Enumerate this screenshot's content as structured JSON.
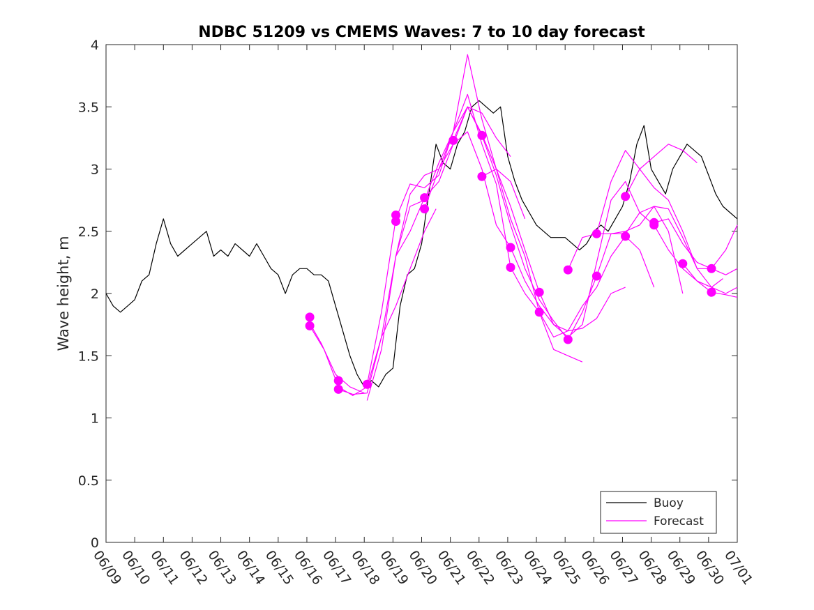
{
  "chart_data": {
    "type": "line",
    "title": "NDBC 51209 vs CMEMS Waves: 7 to 10 day forecast",
    "xlabel": "",
    "ylabel": "Wave height, m",
    "xlim": [
      "06/09",
      "07/01"
    ],
    "ylim": [
      0,
      4
    ],
    "x_ticks": [
      "06/09",
      "06/10",
      "06/11",
      "06/12",
      "06/13",
      "06/14",
      "06/15",
      "06/16",
      "06/17",
      "06/18",
      "06/19",
      "06/20",
      "06/21",
      "06/22",
      "06/23",
      "06/24",
      "06/25",
      "06/26",
      "06/27",
      "06/28",
      "06/29",
      "06/30",
      "07/01"
    ],
    "y_ticks": [
      "0",
      "0.5",
      "1",
      "1.5",
      "2",
      "2.5",
      "3",
      "3.5",
      "4"
    ],
    "grid": false,
    "legend": {
      "placement": "bottom-right",
      "entries": [
        "Buoy",
        "Forecast"
      ]
    },
    "colors": {
      "buoy": "#000000",
      "forecast": "#ff00ff"
    },
    "series": [
      {
        "name": "Buoy",
        "points": [
          [
            0.0,
            2.0
          ],
          [
            0.25,
            1.9
          ],
          [
            0.5,
            1.85
          ],
          [
            0.75,
            1.9
          ],
          [
            1.0,
            1.95
          ],
          [
            1.25,
            2.1
          ],
          [
            1.5,
            2.15
          ],
          [
            1.75,
            2.4
          ],
          [
            2.0,
            2.6
          ],
          [
            2.25,
            2.4
          ],
          [
            2.5,
            2.3
          ],
          [
            2.75,
            2.35
          ],
          [
            3.0,
            2.4
          ],
          [
            3.25,
            2.45
          ],
          [
            3.5,
            2.5
          ],
          [
            3.75,
            2.3
          ],
          [
            4.0,
            2.35
          ],
          [
            4.25,
            2.3
          ],
          [
            4.5,
            2.4
          ],
          [
            4.75,
            2.35
          ],
          [
            5.0,
            2.3
          ],
          [
            5.25,
            2.4
          ],
          [
            5.5,
            2.3
          ],
          [
            5.75,
            2.2
          ],
          [
            6.0,
            2.15
          ],
          [
            6.25,
            2.0
          ],
          [
            6.5,
            2.15
          ],
          [
            6.75,
            2.2
          ],
          [
            7.0,
            2.2
          ],
          [
            7.25,
            2.15
          ],
          [
            7.5,
            2.15
          ],
          [
            7.75,
            2.1
          ],
          [
            8.0,
            1.9
          ],
          [
            8.25,
            1.7
          ],
          [
            8.5,
            1.5
          ],
          [
            8.75,
            1.35
          ],
          [
            9.0,
            1.25
          ],
          [
            9.25,
            1.3
          ],
          [
            9.5,
            1.25
          ],
          [
            9.75,
            1.35
          ],
          [
            10.0,
            1.4
          ],
          [
            10.25,
            1.9
          ],
          [
            10.5,
            2.15
          ],
          [
            10.75,
            2.2
          ],
          [
            11.0,
            2.4
          ],
          [
            11.25,
            2.8
          ],
          [
            11.5,
            3.2
          ],
          [
            11.75,
            3.05
          ],
          [
            12.0,
            3.0
          ],
          [
            12.25,
            3.2
          ],
          [
            12.5,
            3.3
          ],
          [
            12.75,
            3.5
          ],
          [
            13.0,
            3.55
          ],
          [
            13.25,
            3.5
          ],
          [
            13.5,
            3.45
          ],
          [
            13.75,
            3.5
          ],
          [
            14.0,
            3.1
          ],
          [
            14.25,
            2.9
          ],
          [
            14.5,
            2.75
          ],
          [
            14.75,
            2.65
          ],
          [
            15.0,
            2.55
          ],
          [
            15.25,
            2.5
          ],
          [
            15.5,
            2.45
          ],
          [
            15.75,
            2.45
          ],
          [
            16.0,
            2.45
          ],
          [
            16.25,
            2.4
          ],
          [
            16.5,
            2.35
          ],
          [
            16.75,
            2.4
          ],
          [
            17.0,
            2.5
          ],
          [
            17.25,
            2.55
          ],
          [
            17.5,
            2.5
          ],
          [
            17.75,
            2.6
          ],
          [
            18.0,
            2.7
          ],
          [
            18.25,
            2.9
          ],
          [
            18.5,
            3.2
          ],
          [
            18.75,
            3.35
          ],
          [
            19.0,
            3.0
          ],
          [
            19.25,
            2.9
          ],
          [
            19.5,
            2.8
          ],
          [
            19.75,
            3.0
          ],
          [
            20.0,
            3.1
          ],
          [
            20.25,
            3.2
          ],
          [
            20.5,
            3.15
          ],
          [
            20.75,
            3.1
          ],
          [
            21.0,
            2.95
          ],
          [
            21.25,
            2.8
          ],
          [
            21.5,
            2.7
          ],
          [
            21.75,
            2.65
          ],
          [
            22.0,
            2.6
          ]
        ]
      },
      {
        "name": "Forecast",
        "points": [
          [
            7.0,
            1.8
          ],
          [
            7.5,
            1.6
          ],
          [
            8.0,
            1.35
          ],
          [
            8.5,
            1.25
          ],
          [
            9.0,
            1.2
          ]
        ],
        "markers": [
          [
            7.1,
            1.81
          ],
          [
            7.1,
            1.74
          ],
          [
            8.1,
            1.3
          ],
          [
            8.1,
            1.23
          ],
          [
            9.1,
            1.27
          ],
          [
            10.1,
            2.63
          ],
          [
            10.1,
            2.58
          ],
          [
            11.1,
            2.77
          ],
          [
            11.1,
            2.68
          ],
          [
            12.1,
            3.23
          ],
          [
            13.1,
            3.27
          ],
          [
            13.1,
            2.94
          ],
          [
            14.1,
            2.37
          ],
          [
            14.1,
            2.21
          ],
          [
            15.1,
            2.01
          ],
          [
            15.1,
            1.85
          ],
          [
            16.1,
            1.63
          ],
          [
            16.1,
            2.19
          ],
          [
            17.1,
            2.48
          ],
          [
            17.1,
            2.14
          ],
          [
            18.1,
            2.78
          ],
          [
            18.1,
            2.46
          ],
          [
            19.1,
            2.57
          ],
          [
            19.1,
            2.55
          ],
          [
            20.1,
            2.24
          ],
          [
            21.1,
            2.2
          ],
          [
            21.1,
            2.01
          ]
        ]
      },
      {
        "name": "",
        "points": [
          [
            7.1,
            1.74
          ],
          [
            7.6,
            1.55
          ],
          [
            8.1,
            1.25
          ],
          [
            8.6,
            1.18
          ],
          [
            9.1,
            1.25
          ],
          [
            9.6,
            1.65
          ],
          [
            10.1,
            1.9
          ],
          [
            10.6,
            2.2
          ],
          [
            11.1,
            2.5
          ],
          [
            11.5,
            2.68
          ]
        ]
      },
      {
        "name": "",
        "points": [
          [
            8.1,
            1.23
          ],
          [
            8.6,
            1.19
          ],
          [
            9.1,
            1.2
          ],
          [
            9.6,
            1.65
          ],
          [
            10.1,
            2.3
          ],
          [
            10.6,
            2.8
          ],
          [
            11.1,
            2.95
          ],
          [
            11.6,
            3.0
          ],
          [
            12.1,
            3.2
          ],
          [
            12.6,
            3.5
          ],
          [
            13.1,
            3.45
          ],
          [
            13.6,
            3.25
          ],
          [
            14.1,
            3.1
          ]
        ]
      },
      {
        "name": "",
        "points": [
          [
            9.1,
            1.27
          ],
          [
            9.6,
            1.85
          ],
          [
            10.1,
            2.6
          ],
          [
            10.6,
            2.88
          ],
          [
            11.1,
            2.85
          ],
          [
            11.6,
            2.95
          ],
          [
            12.1,
            3.3
          ],
          [
            12.6,
            3.92
          ],
          [
            13.1,
            3.4
          ],
          [
            13.6,
            3.0
          ],
          [
            14.1,
            2.9
          ],
          [
            14.6,
            2.6
          ]
        ]
      },
      {
        "name": "",
        "points": [
          [
            9.1,
            1.14
          ],
          [
            9.6,
            1.55
          ],
          [
            10.1,
            2.3
          ],
          [
            10.6,
            2.7
          ],
          [
            11.1,
            2.75
          ],
          [
            11.6,
            3.05
          ],
          [
            12.1,
            3.3
          ],
          [
            12.6,
            3.5
          ],
          [
            13.1,
            3.28
          ],
          [
            13.6,
            3.0
          ],
          [
            14.1,
            2.6
          ],
          [
            14.6,
            2.3
          ],
          [
            15.1,
            1.85
          ],
          [
            15.6,
            1.55
          ],
          [
            16.1,
            1.5
          ],
          [
            16.6,
            1.45
          ]
        ]
      },
      {
        "name": "",
        "points": [
          [
            10.1,
            2.3
          ],
          [
            10.6,
            2.5
          ],
          [
            11.1,
            2.77
          ],
          [
            11.6,
            2.9
          ],
          [
            12.1,
            3.2
          ],
          [
            12.6,
            3.3
          ],
          [
            13.1,
            3.0
          ],
          [
            13.6,
            2.55
          ],
          [
            14.1,
            2.37
          ],
          [
            14.6,
            2.1
          ],
          [
            15.1,
            1.9
          ],
          [
            15.6,
            1.75
          ],
          [
            16.1,
            1.7
          ],
          [
            16.6,
            1.72
          ],
          [
            17.1,
            1.8
          ],
          [
            17.6,
            2.0
          ],
          [
            18.1,
            2.05
          ]
        ]
      },
      {
        "name": "",
        "points": [
          [
            11.1,
            2.68
          ],
          [
            11.6,
            3.0
          ],
          [
            12.1,
            3.3
          ],
          [
            12.6,
            3.6
          ],
          [
            13.1,
            3.2
          ],
          [
            13.6,
            2.88
          ],
          [
            14.1,
            2.21
          ],
          [
            14.6,
            2.0
          ],
          [
            15.1,
            1.85
          ],
          [
            15.6,
            1.65
          ],
          [
            16.1,
            1.7
          ],
          [
            16.6,
            1.9
          ],
          [
            17.1,
            2.05
          ],
          [
            17.6,
            2.3
          ],
          [
            18.1,
            2.46
          ],
          [
            18.6,
            2.35
          ],
          [
            19.1,
            2.05
          ]
        ]
      },
      {
        "name": "",
        "points": [
          [
            12.1,
            3.23
          ],
          [
            12.6,
            3.5
          ],
          [
            13.1,
            3.27
          ],
          [
            13.6,
            2.95
          ],
          [
            14.1,
            2.55
          ],
          [
            14.6,
            2.2
          ],
          [
            15.1,
            1.95
          ],
          [
            15.6,
            1.78
          ],
          [
            16.1,
            1.63
          ],
          [
            16.6,
            1.85
          ],
          [
            17.1,
            2.14
          ],
          [
            17.6,
            2.48
          ],
          [
            18.1,
            2.5
          ],
          [
            18.6,
            2.55
          ],
          [
            19.1,
            2.7
          ],
          [
            19.6,
            2.5
          ],
          [
            20.1,
            2.0
          ]
        ]
      },
      {
        "name": "",
        "points": [
          [
            13.1,
            2.94
          ],
          [
            13.6,
            3.0
          ],
          [
            14.1,
            2.7
          ],
          [
            14.6,
            2.35
          ],
          [
            15.1,
            2.01
          ],
          [
            15.6,
            1.75
          ],
          [
            16.1,
            1.65
          ],
          [
            16.6,
            1.75
          ],
          [
            17.1,
            2.25
          ],
          [
            17.6,
            2.75
          ],
          [
            18.1,
            2.9
          ],
          [
            18.6,
            2.65
          ],
          [
            19.1,
            2.55
          ],
          [
            19.6,
            2.35
          ],
          [
            20.1,
            2.2
          ],
          [
            20.6,
            2.1
          ],
          [
            21.1,
            2.05
          ],
          [
            21.5,
            2.12
          ]
        ]
      },
      {
        "name": "",
        "points": [
          [
            16.1,
            2.19
          ],
          [
            16.6,
            2.45
          ],
          [
            17.1,
            2.48
          ],
          [
            17.6,
            2.48
          ],
          [
            18.1,
            2.48
          ],
          [
            18.6,
            2.65
          ],
          [
            19.1,
            2.7
          ],
          [
            19.6,
            2.68
          ],
          [
            20.1,
            2.45
          ],
          [
            20.6,
            2.2
          ],
          [
            21.1,
            2.05
          ],
          [
            21.6,
            2.0
          ],
          [
            22.0,
            2.05
          ]
        ]
      },
      {
        "name": "",
        "points": [
          [
            18.1,
            2.78
          ],
          [
            18.6,
            3.0
          ],
          [
            19.1,
            3.1
          ],
          [
            19.6,
            3.2
          ],
          [
            20.1,
            3.15
          ],
          [
            20.6,
            3.05
          ]
        ]
      },
      {
        "name": "",
        "points": [
          [
            17.1,
            2.48
          ],
          [
            17.6,
            2.9
          ],
          [
            18.1,
            3.15
          ],
          [
            18.6,
            3.0
          ],
          [
            19.1,
            2.85
          ],
          [
            19.6,
            2.75
          ],
          [
            20.1,
            2.5
          ],
          [
            20.6,
            2.2
          ],
          [
            21.1,
            2.2
          ],
          [
            21.6,
            2.15
          ],
          [
            22.0,
            2.2
          ]
        ]
      },
      {
        "name": "",
        "points": [
          [
            19.1,
            2.57
          ],
          [
            19.6,
            2.6
          ],
          [
            20.1,
            2.4
          ],
          [
            20.6,
            2.25
          ],
          [
            21.1,
            2.2
          ],
          [
            21.6,
            2.35
          ],
          [
            22.0,
            2.55
          ]
        ]
      },
      {
        "name": "",
        "points": [
          [
            20.1,
            2.24
          ],
          [
            20.6,
            2.1
          ],
          [
            21.1,
            2.01
          ],
          [
            21.6,
            1.99
          ],
          [
            22.0,
            1.97
          ]
        ]
      }
    ]
  }
}
